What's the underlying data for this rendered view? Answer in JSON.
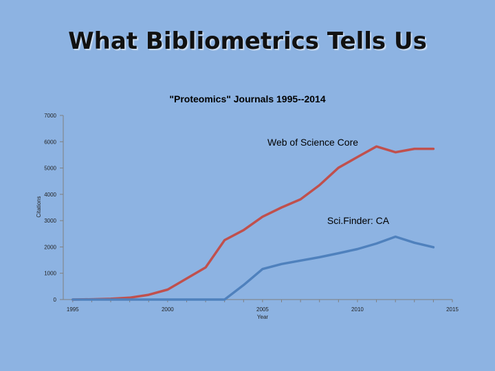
{
  "slide": {
    "title": "What Bibliometrics Tells Us"
  },
  "chart_data": {
    "type": "line",
    "title": "\"Proteomics\" Journals 1995--2014",
    "xlabel": "Year",
    "ylabel": "Citations",
    "x": [
      1995,
      1996,
      1997,
      1998,
      1999,
      2000,
      2001,
      2002,
      2003,
      2004,
      2005,
      2006,
      2007,
      2008,
      2009,
      2010,
      2011,
      2012,
      2013,
      2014
    ],
    "xlim": [
      1994.5,
      2015
    ],
    "ylim": [
      0,
      7000
    ],
    "x_ticks": [
      "1995",
      "2000",
      "2005",
      "2010",
      "2015"
    ],
    "x_tick_values": [
      1995,
      2000,
      2005,
      2010,
      2015
    ],
    "y_ticks": [
      "0",
      "1000",
      "2000",
      "3000",
      "4000",
      "5000",
      "6000",
      "7000"
    ],
    "y_tick_values": [
      0,
      1000,
      2000,
      3000,
      4000,
      5000,
      6000,
      7000
    ],
    "grid": false,
    "legend": "none",
    "series": [
      {
        "color": "#c0504d",
        "values": [
          0,
          10,
          30,
          70,
          180,
          380,
          800,
          1220,
          2260,
          2640,
          3150,
          3500,
          3810,
          4350,
          5010,
          5420,
          5820,
          5600,
          5730,
          5730
        ]
      },
      {
        "color": "#4f81bd",
        "values": [
          0,
          0,
          0,
          0,
          0,
          0,
          0,
          0,
          0,
          550,
          1160,
          1350,
          1480,
          1610,
          1760,
          1920,
          2130,
          2390,
          2160,
          1990
        ]
      }
    ],
    "annotations": [
      {
        "text": "Web of Science Core",
        "series": 0
      },
      {
        "text": "Sci.Finder: CA",
        "series": 1
      }
    ]
  }
}
